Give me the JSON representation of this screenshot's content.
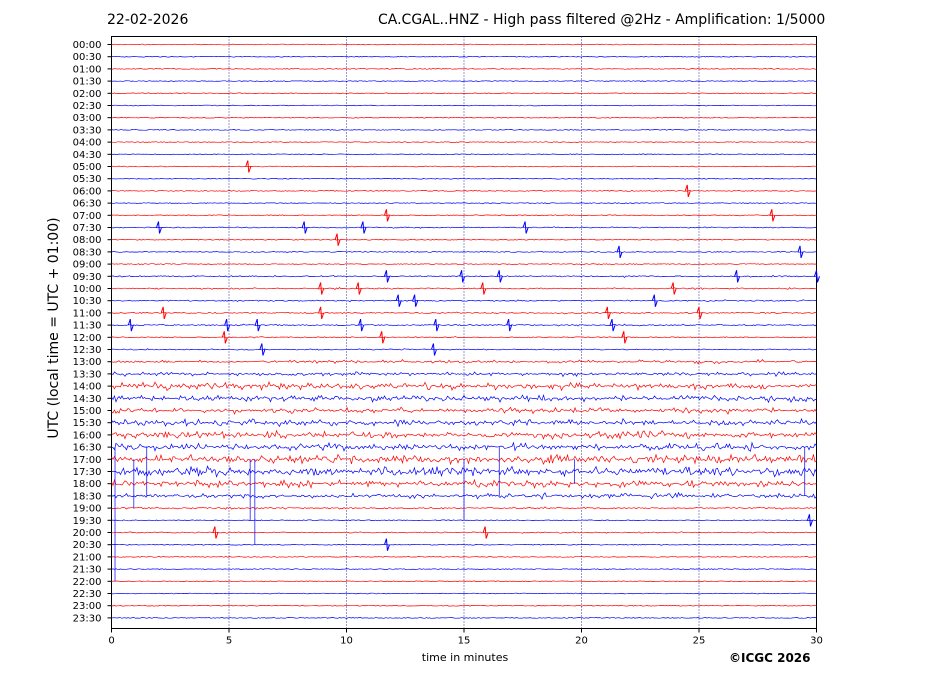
{
  "header": {
    "date": "22-02-2026",
    "title": "CA.CGAL..HNZ - High pass filtered @2Hz - Amplification: 1/5000"
  },
  "footer": {
    "credit": "©ICGC 2026"
  },
  "chart_data": {
    "type": "line",
    "xlabel": "time in minutes",
    "ylabel": "UTC (local time = UTC + 01:00)",
    "xlim": [
      0,
      30
    ],
    "x_ticks": [
      "0",
      "5",
      "10",
      "15",
      "20",
      "25",
      "30"
    ],
    "row_labels": [
      "00:00",
      "00:30",
      "01:00",
      "01:30",
      "02:00",
      "02:30",
      "03:00",
      "03:30",
      "04:00",
      "04:30",
      "05:00",
      "05:30",
      "06:00",
      "06:30",
      "07:00",
      "07:30",
      "08:00",
      "08:30",
      "09:00",
      "09:30",
      "10:00",
      "10:30",
      "11:00",
      "11:30",
      "12:00",
      "12:30",
      "13:00",
      "13:30",
      "14:00",
      "14:30",
      "15:00",
      "15:30",
      "16:00",
      "16:30",
      "17:00",
      "17:30",
      "18:00",
      "18:30",
      "19:00",
      "19:30",
      "20:00",
      "20:30",
      "21:00",
      "21:30",
      "22:00",
      "22:30",
      "23:00",
      "23:30"
    ],
    "trace_colors": [
      "#ff0000",
      "#0000ff"
    ],
    "grid": "vertical dotted lines every 5 minutes",
    "activity_level": [
      0,
      0,
      0,
      0,
      0,
      0,
      0,
      0,
      0,
      0,
      0.05,
      0,
      0.05,
      0,
      0.05,
      0.1,
      0.05,
      0.05,
      0.05,
      0.15,
      0.15,
      0.15,
      0.15,
      0.15,
      0.1,
      0.1,
      0.35,
      0.45,
      0.75,
      0.7,
      0.6,
      0.7,
      0.75,
      0.75,
      0.9,
      0.95,
      0.8,
      0.55,
      0.2,
      0.05,
      0.1,
      0.05,
      0,
      0,
      0,
      0,
      0,
      0
    ],
    "spikes": [
      {
        "row": "05:00",
        "t": [
          5.8
        ]
      },
      {
        "row": "06:00",
        "t": [
          24.5
        ]
      },
      {
        "row": "07:00",
        "t": [
          11.7,
          28.1
        ]
      },
      {
        "row": "07:30",
        "t": [
          2.0,
          8.2,
          10.7,
          17.6
        ]
      },
      {
        "row": "08:00",
        "t": [
          9.6
        ]
      },
      {
        "row": "08:30",
        "t": [
          21.6,
          29.3
        ]
      },
      {
        "row": "09:30",
        "t": [
          11.7,
          14.9,
          16.5,
          26.6,
          30.0
        ]
      },
      {
        "row": "10:00",
        "t": [
          8.9,
          10.5,
          15.8,
          23.9
        ]
      },
      {
        "row": "10:30",
        "t": [
          12.2,
          12.9,
          23.1
        ]
      },
      {
        "row": "11:00",
        "t": [
          2.2,
          8.9,
          21.1,
          25.0
        ]
      },
      {
        "row": "11:30",
        "t": [
          0.8,
          4.9,
          6.2,
          10.6,
          13.8,
          16.9,
          21.3
        ]
      },
      {
        "row": "12:00",
        "t": [
          4.8,
          11.5,
          21.8
        ]
      },
      {
        "row": "12:30",
        "t": [
          6.4,
          13.7
        ]
      },
      {
        "row": "19:30",
        "t": [
          29.7
        ]
      },
      {
        "row": "20:00",
        "t": [
          4.4,
          15.9
        ]
      },
      {
        "row": "20:30",
        "t": [
          11.7
        ]
      }
    ]
  }
}
